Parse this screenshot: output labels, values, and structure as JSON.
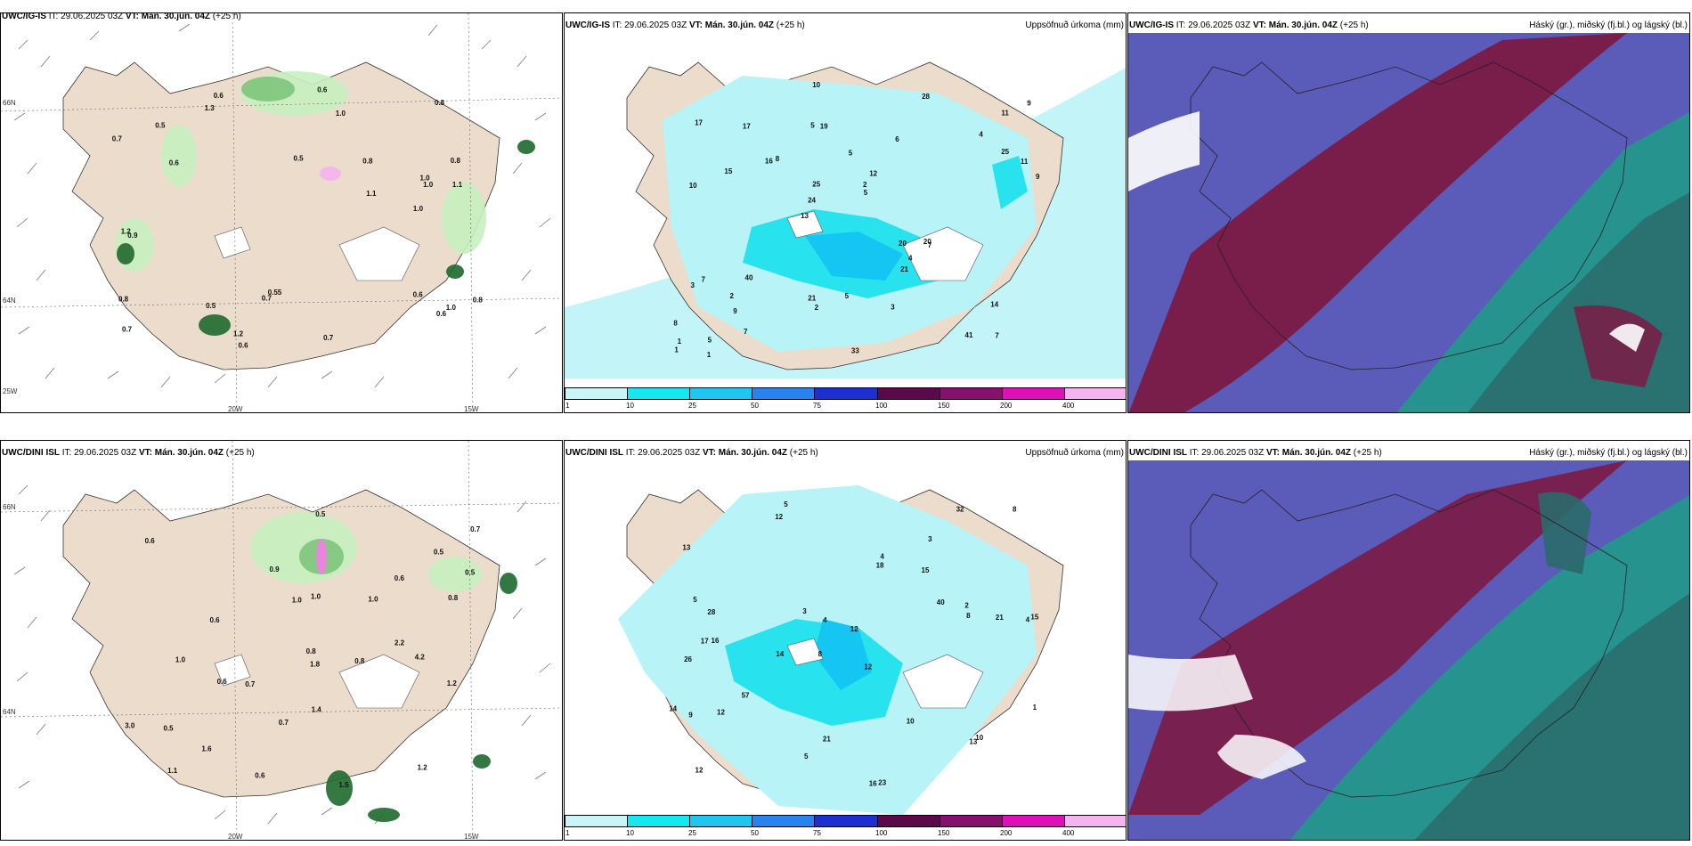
{
  "panels": {
    "top_left": {
      "model": "UWC/IG-IS",
      "it": "IT: 29.06.2025 03Z",
      "vt": "VT: Mán. 30.jún. 04Z",
      "lead": "(+25 h)"
    },
    "top_mid": {
      "model": "UWC/IG-IS",
      "it": "IT: 29.06.2025 03Z",
      "vt": "VT: Mán. 30.jún. 04Z",
      "lead": "(+25 h)",
      "field": "Uppsöfnuð úrkoma (mm)"
    },
    "top_right": {
      "model": "UWC/IG-IS",
      "it": "IT: 29.06.2025 03Z",
      "vt": "VT: Mán. 30.jún. 04Z",
      "lead": "(+25 h)",
      "field": "Háský (gr.), miðský (fj.bl.) og lágský (bl.)"
    },
    "bot_left": {
      "model": "UWC/DINI ISL",
      "it": "IT: 29.06.2025 03Z",
      "vt": "VT: Mán. 30.jún. 04Z",
      "lead": "(+25 h)"
    },
    "bot_mid": {
      "model": "UWC/DINI ISL",
      "it": "IT: 29.06.2025 03Z",
      "vt": "VT: Mán. 30.jún. 04Z",
      "lead": "(+25 h)",
      "field": "Uppsöfnuð úrkoma (mm)"
    },
    "bot_right": {
      "model": "UWC/DINI ISL",
      "it": "IT: 29.06.2025 03Z",
      "vt": "VT: Mán. 30.jún. 04Z",
      "lead": "(+25 h)",
      "field": "Háský (gr.), miðský (fj.bl.) og lágský (bl.)"
    }
  },
  "grid_labels": {
    "lat66": "66N",
    "lat64": "64N",
    "lon20": "20W",
    "lon15": "15W",
    "lon25": "25W"
  },
  "legend": {
    "ticks": [
      "1",
      "10",
      "25",
      "50",
      "75",
      "100",
      "150",
      "200",
      "400"
    ],
    "colors": [
      "#c8f6f8",
      "#14e9f0",
      "#1ec6f0",
      "#2a82f0",
      "#1c30d0",
      "#5a0a4a",
      "#86106e",
      "#e010b8",
      "#f4b4f0"
    ]
  },
  "colors": {
    "land": "#ecdccb",
    "precip_light": "#b8f3f7",
    "precip_mid": "#28e2ee",
    "precip_heavy": "#16c6f2",
    "green_light": "#c8f0c0",
    "green_mid": "#7cc87c",
    "green_dark": "#1e6a2e",
    "cloud_high": "#7b1a44",
    "cloud_mid": "#5b5bb9",
    "cloud_low": "#1e9e86"
  },
  "precip_labels_top": [
    "7",
    "10",
    "11",
    "13",
    "6",
    "5",
    "5",
    "5",
    "7",
    "8",
    "8",
    "9",
    "19",
    "12",
    "7",
    "17",
    "10",
    "9",
    "20",
    "25",
    "24",
    "21",
    "25",
    "17",
    "28",
    "40",
    "41",
    "14",
    "20",
    "33",
    "16",
    "15",
    "21",
    "7",
    "11",
    "2",
    "1",
    "2",
    "5",
    "3",
    "4",
    "9",
    "4",
    "3",
    "2",
    "1",
    "1",
    "5"
  ],
  "precip_labels_bot": [
    "5",
    "3",
    "4",
    "8",
    "12",
    "16",
    "13",
    "15",
    "26",
    "18",
    "12",
    "12",
    "12",
    "14",
    "16",
    "23",
    "21",
    "32",
    "40",
    "57",
    "28",
    "17",
    "15",
    "21",
    "14",
    "5",
    "4",
    "8",
    "10",
    "9",
    "13",
    "4",
    "12",
    "3",
    "10",
    "1",
    "2",
    "5",
    "8"
  ],
  "wx_labels_top": [
    "0.6",
    "0.8",
    "1.0",
    "0.5",
    "0.7",
    "0.6",
    "1.0",
    "0.5",
    "0.8",
    "0.6",
    "1.1",
    "0.7",
    "1.0",
    "0.6",
    "0.8",
    "0.5",
    "0.6",
    "1.3",
    "0.55",
    "1.0",
    "1.2",
    "0.9",
    "0.7",
    "1.1",
    "1.2",
    "0.7",
    "0.6",
    "1.0",
    "0.8",
    "0.8"
  ],
  "wx_labels_bot": [
    "1.6",
    "0.5",
    "0.7",
    "1.0",
    "0.5",
    "0.6",
    "1.0",
    "0.7",
    "1.2",
    "0.9",
    "0.6",
    "0.8",
    "1.0",
    "0.6",
    "0.5",
    "1.5",
    "1.2",
    "3.0",
    "0.8",
    "0.5",
    "2.2",
    "0.6",
    "1.1",
    "0.7",
    "0.8",
    "0.6",
    "1.0",
    "1.4",
    "4.2",
    "1.8"
  ]
}
